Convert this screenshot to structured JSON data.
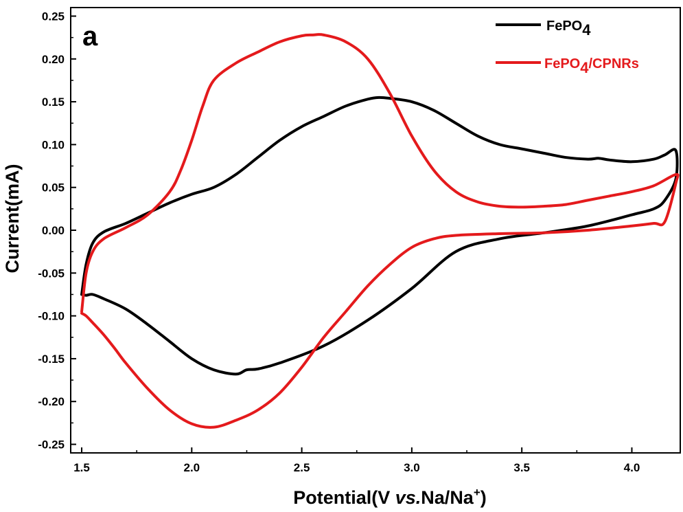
{
  "chart_data": {
    "type": "line",
    "panel_label": "a",
    "xlabel": {
      "pre": "Potential(V ",
      "italic": "vs.",
      "post": "Na/Na",
      "sup": "+",
      "close": ")"
    },
    "ylabel": "Current(mA)",
    "xlim": [
      1.45,
      4.22
    ],
    "ylim": [
      -0.26,
      0.26
    ],
    "x_ticks": [
      1.5,
      2.0,
      2.5,
      3.0,
      3.5,
      4.0
    ],
    "x_tick_labels": [
      "1.5",
      "2.0",
      "2.5",
      "3.0",
      "3.5",
      "4.0"
    ],
    "y_ticks": [
      -0.25,
      -0.2,
      -0.15,
      -0.1,
      -0.05,
      0.0,
      0.05,
      0.1,
      0.15,
      0.2,
      0.25
    ],
    "y_tick_labels": [
      "-0.25",
      "-0.20",
      "-0.15",
      "-0.10",
      "-0.05",
      "0.00",
      "0.05",
      "0.10",
      "0.15",
      "0.20",
      "0.25"
    ],
    "grid": false,
    "legend_position": "top-right",
    "series": [
      {
        "name": "FePO4",
        "name_base": "FePO",
        "name_sub": "4",
        "name_suffix": "",
        "color": "#000000",
        "x": [
          1.5,
          1.52,
          1.55,
          1.6,
          1.7,
          1.8,
          1.9,
          2.0,
          2.1,
          2.2,
          2.3,
          2.4,
          2.5,
          2.6,
          2.7,
          2.8,
          2.85,
          2.9,
          3.0,
          3.1,
          3.2,
          3.3,
          3.4,
          3.5,
          3.6,
          3.7,
          3.8,
          3.85,
          3.9,
          4.0,
          4.1,
          4.15,
          4.2,
          4.2,
          4.15,
          4.1,
          4.0,
          3.8,
          3.6,
          3.4,
          3.2,
          3.0,
          2.8,
          2.6,
          2.4,
          2.3,
          2.25,
          2.2,
          2.1,
          2.0,
          1.9,
          1.8,
          1.7,
          1.6,
          1.55,
          1.52,
          1.5
        ],
        "y": [
          -0.075,
          -0.04,
          -0.015,
          -0.002,
          0.008,
          0.02,
          0.032,
          0.042,
          0.05,
          0.065,
          0.085,
          0.105,
          0.121,
          0.133,
          0.145,
          0.153,
          0.155,
          0.154,
          0.15,
          0.14,
          0.125,
          0.11,
          0.1,
          0.095,
          0.09,
          0.085,
          0.083,
          0.084,
          0.082,
          0.08,
          0.083,
          0.088,
          0.093,
          0.06,
          0.035,
          0.025,
          0.018,
          0.005,
          -0.003,
          -0.01,
          -0.025,
          -0.068,
          -0.105,
          -0.135,
          -0.155,
          -0.162,
          -0.163,
          -0.168,
          -0.163,
          -0.15,
          -0.13,
          -0.11,
          -0.092,
          -0.08,
          -0.075,
          -0.076,
          -0.075
        ]
      },
      {
        "name": "FePO4/CPNRs",
        "name_base": "FePO",
        "name_sub": "4",
        "name_suffix": "/CPNRs",
        "color": "#e41a1c",
        "x": [
          1.5,
          1.52,
          1.55,
          1.6,
          1.7,
          1.8,
          1.9,
          1.95,
          2.0,
          2.05,
          2.1,
          2.2,
          2.3,
          2.4,
          2.5,
          2.55,
          2.6,
          2.7,
          2.8,
          2.9,
          3.0,
          3.1,
          3.2,
          3.3,
          3.4,
          3.5,
          3.6,
          3.7,
          3.8,
          3.9,
          4.0,
          4.1,
          4.2,
          4.2,
          4.15,
          4.1,
          4.0,
          3.8,
          3.6,
          3.4,
          3.2,
          3.1,
          3.0,
          2.9,
          2.8,
          2.7,
          2.6,
          2.5,
          2.4,
          2.3,
          2.2,
          2.1,
          2.0,
          1.9,
          1.8,
          1.7,
          1.65,
          1.6,
          1.55,
          1.52,
          1.5
        ],
        "y": [
          -0.095,
          -0.05,
          -0.025,
          -0.01,
          0.003,
          0.018,
          0.045,
          0.07,
          0.105,
          0.145,
          0.175,
          0.195,
          0.208,
          0.22,
          0.227,
          0.228,
          0.228,
          0.22,
          0.2,
          0.16,
          0.11,
          0.07,
          0.045,
          0.033,
          0.028,
          0.027,
          0.028,
          0.03,
          0.035,
          0.04,
          0.045,
          0.052,
          0.065,
          0.055,
          0.01,
          0.008,
          0.005,
          0.0,
          -0.003,
          -0.004,
          -0.006,
          -0.01,
          -0.02,
          -0.04,
          -0.065,
          -0.095,
          -0.125,
          -0.16,
          -0.19,
          -0.21,
          -0.222,
          -0.23,
          -0.226,
          -0.21,
          -0.185,
          -0.155,
          -0.138,
          -0.122,
          -0.108,
          -0.1,
          -0.097
        ]
      }
    ]
  }
}
